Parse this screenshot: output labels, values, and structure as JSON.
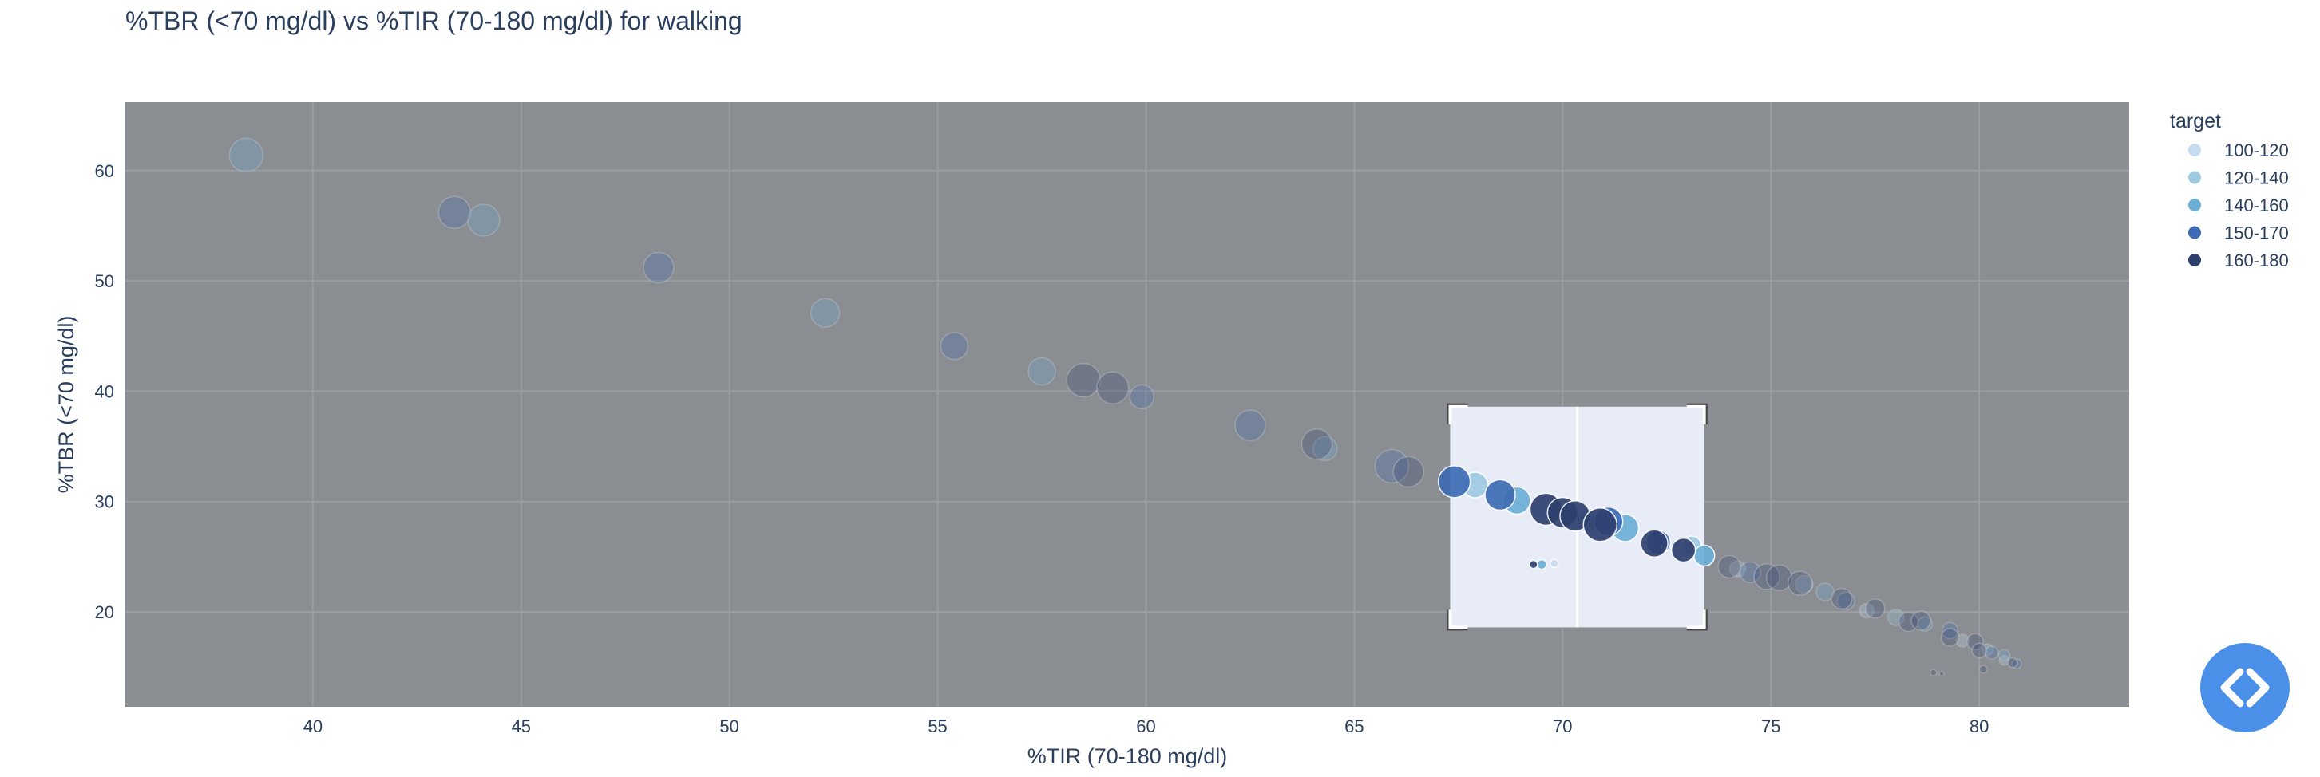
{
  "chart_data": {
    "type": "scatter",
    "title": "%TBR (<70 mg/dl) vs %TIR (70-180 mg/dl) for walking",
    "xlabel": "%TIR (70-180 mg/dl)",
    "ylabel": "%TBR (<70 mg/dl)",
    "xlim": [
      35.5,
      83.6
    ],
    "ylim": [
      11.4,
      66.2
    ],
    "xticks": [
      40,
      45,
      50,
      55,
      60,
      65,
      70,
      75,
      80
    ],
    "yticks": [
      20,
      30,
      40,
      50,
      60
    ],
    "grid": true,
    "legend": {
      "title": "target",
      "position": "right"
    },
    "selection_box": {
      "x": [
        67.3,
        73.4
      ],
      "y": [
        18.6,
        38.6
      ]
    },
    "series": [
      {
        "name": "100-120",
        "color": "#c6dbef",
        "points": [
          [
            69.8,
            24.4,
            5
          ],
          [
            74.2,
            23.9,
            10
          ],
          [
            77.3,
            20.1,
            9
          ],
          [
            79.6,
            17.4,
            8
          ],
          [
            80.6,
            15.6,
            6
          ]
        ]
      },
      {
        "name": "120-140",
        "color": "#9ecae1",
        "points": [
          [
            67.9,
            31.5,
            16
          ],
          [
            70.6,
            28.2,
            14
          ],
          [
            73.1,
            26.0,
            12
          ],
          [
            75.8,
            22.5,
            11
          ],
          [
            78.0,
            19.5,
            10
          ],
          [
            80.2,
            16.6,
            7
          ]
        ]
      },
      {
        "name": "140-160",
        "color": "#6baed6",
        "points": [
          [
            38.4,
            61.4,
            21
          ],
          [
            44.1,
            55.5,
            20
          ],
          [
            52.3,
            47.1,
            18
          ],
          [
            57.5,
            41.8,
            17
          ],
          [
            64.3,
            34.8,
            15
          ],
          [
            68.9,
            30.1,
            17
          ],
          [
            69.5,
            24.3,
            6
          ],
          [
            71.5,
            27.6,
            17
          ],
          [
            73.4,
            25.1,
            13
          ],
          [
            76.3,
            21.8,
            11
          ],
          [
            78.7,
            18.9,
            9
          ],
          [
            80.6,
            16.1,
            7
          ]
        ]
      },
      {
        "name": "150-170",
        "color": "#3e6bb3",
        "points": [
          [
            43.4,
            56.2,
            20
          ],
          [
            48.3,
            51.2,
            19
          ],
          [
            55.4,
            44.1,
            17
          ],
          [
            59.9,
            39.5,
            15
          ],
          [
            62.5,
            36.9,
            19
          ],
          [
            65.9,
            33.2,
            21
          ],
          [
            67.4,
            31.8,
            20
          ],
          [
            68.5,
            30.6,
            19
          ],
          [
            71.1,
            28.2,
            18
          ],
          [
            72.3,
            26.3,
            15
          ],
          [
            74.5,
            23.6,
            13
          ],
          [
            76.8,
            21.0,
            11
          ],
          [
            79.3,
            18.3,
            10
          ],
          [
            80.3,
            16.3,
            8
          ],
          [
            80.9,
            15.3,
            6
          ]
        ]
      },
      {
        "name": "160-180",
        "color": "#2e3f6e",
        "points": [
          [
            58.5,
            41.0,
            21
          ],
          [
            59.2,
            40.3,
            20
          ],
          [
            64.1,
            35.2,
            19
          ],
          [
            66.3,
            32.7,
            19
          ],
          [
            69.6,
            29.3,
            20
          ],
          [
            70.0,
            29.0,
            19
          ],
          [
            70.3,
            28.7,
            19
          ],
          [
            70.9,
            27.9,
            21
          ],
          [
            72.2,
            26.2,
            17
          ],
          [
            72.9,
            25.6,
            15
          ],
          [
            74.0,
            24.1,
            14
          ],
          [
            74.9,
            23.2,
            16
          ],
          [
            75.2,
            23.1,
            16
          ],
          [
            75.7,
            22.6,
            15
          ],
          [
            76.7,
            21.2,
            13
          ],
          [
            77.5,
            20.3,
            12
          ],
          [
            78.3,
            19.1,
            12
          ],
          [
            78.6,
            19.2,
            12
          ],
          [
            79.3,
            17.7,
            11
          ],
          [
            79.9,
            17.3,
            10
          ],
          [
            80.0,
            16.5,
            9
          ],
          [
            80.1,
            14.8,
            5
          ],
          [
            80.8,
            15.4,
            6
          ],
          [
            69.3,
            24.3,
            5
          ],
          [
            78.9,
            14.5,
            4
          ],
          [
            79.1,
            14.4,
            3
          ]
        ]
      }
    ]
  }
}
